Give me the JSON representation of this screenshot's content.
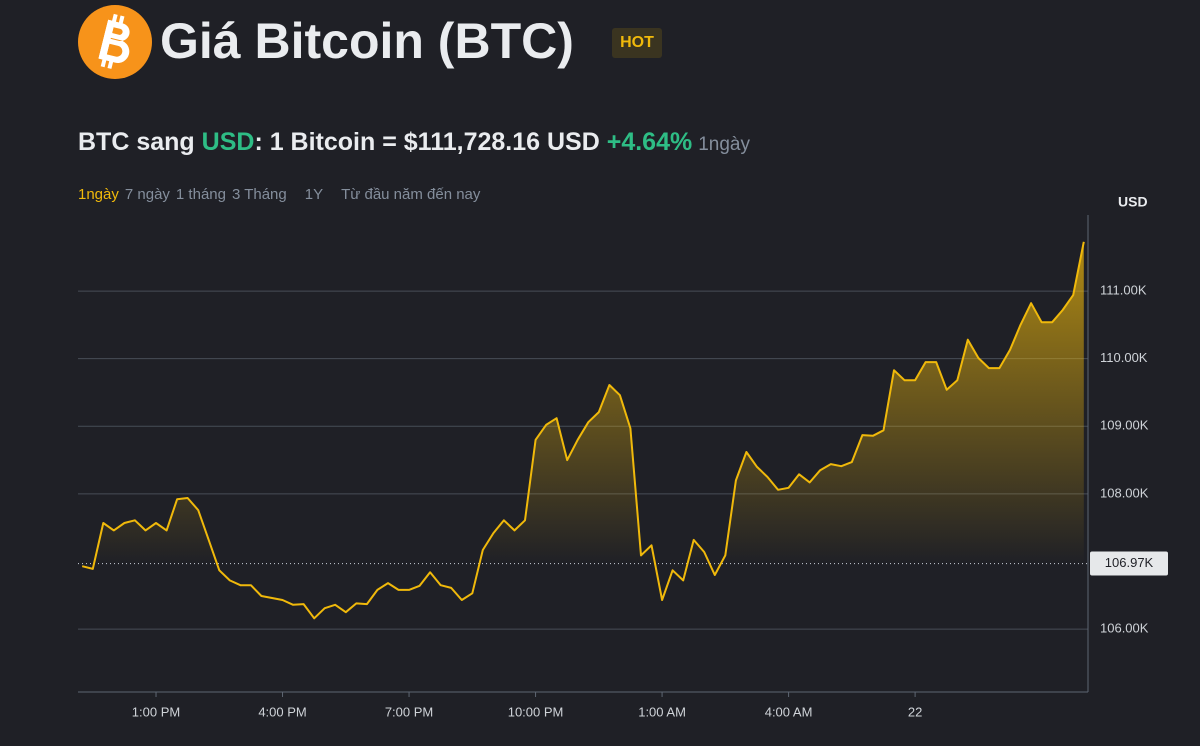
{
  "header": {
    "title": "Giá Bitcoin (BTC)",
    "badge": "HOT"
  },
  "price": {
    "pair_prefix": "BTC sang",
    "quote": "USD",
    "rate": ": 1 Bitcoin = $111,728.16 USD",
    "change": "+4.64%",
    "period": "1ngày"
  },
  "tabs": [
    "1ngày",
    "7 ngày",
    "1 tháng",
    "3 Tháng",
    "1Y",
    "Từ đầu năm đến nay"
  ],
  "chart_data": {
    "type": "line",
    "y_axis_label": "USD",
    "color": "#f0b90b",
    "x": [
      11.25,
      11.5,
      11.75,
      12,
      12.25,
      12.5,
      12.75,
      13,
      13.25,
      13.5,
      13.75,
      14,
      14.25,
      14.5,
      14.75,
      15,
      15.25,
      15.5,
      15.75,
      16,
      16.25,
      16.5,
      16.75,
      17,
      17.25,
      17.5,
      17.75,
      18,
      18.25,
      18.5,
      18.75,
      19,
      19.25,
      19.5,
      19.75,
      20,
      20.25,
      20.5,
      20.75,
      21,
      21.25,
      21.5,
      21.75,
      22,
      22.25,
      22.5,
      22.75,
      23,
      23.25,
      23.5,
      23.75,
      24,
      24.25,
      24.5,
      24.75,
      25,
      25.25,
      25.5,
      25.75,
      26,
      26.25,
      26.5,
      26.75,
      27,
      27.25,
      27.5,
      27.75,
      28,
      28.25,
      28.5,
      28.75,
      29,
      29.25,
      29.5,
      29.75,
      30,
      30.25,
      30.5,
      30.75,
      31,
      31.25,
      31.5,
      31.75,
      32,
      32.25,
      32.5,
      32.75,
      33,
      33.25,
      33.5,
      33.75,
      34,
      34.25,
      34.5,
      34.75,
      35
    ],
    "values": [
      106930,
      106890,
      107570,
      107460,
      107570,
      107610,
      107460,
      107570,
      107460,
      107920,
      107940,
      107760,
      107320,
      106870,
      106720,
      106650,
      106650,
      106490,
      106460,
      106430,
      106360,
      106370,
      106160,
      106310,
      106360,
      106250,
      106380,
      106370,
      106580,
      106680,
      106580,
      106580,
      106640,
      106840,
      106650,
      106610,
      106430,
      106530,
      107170,
      107420,
      107610,
      107460,
      107610,
      108800,
      109020,
      109120,
      108500,
      108800,
      109060,
      109210,
      109610,
      109460,
      108970,
      107090,
      107240,
      106430,
      106870,
      106720,
      107320,
      107140,
      106800,
      107090,
      108200,
      108620,
      108400,
      108250,
      108060,
      108090,
      108290,
      108170,
      108350,
      108440,
      108410,
      108470,
      108870,
      108860,
      108940,
      109830,
      109680,
      109680,
      109950,
      109950,
      109540,
      109680,
      110280,
      110010,
      109860,
      109860,
      110130,
      110500,
      110820,
      110540,
      110540,
      110720,
      110940,
      111728.16
    ],
    "xlim": [
      11.15,
      35.1
    ],
    "ylim": [
      105070,
      112125
    ],
    "xticks": [
      {
        "value": 13,
        "label": "1:00 PM"
      },
      {
        "value": 16,
        "label": "4:00 PM"
      },
      {
        "value": 19,
        "label": "7:00 PM"
      },
      {
        "value": 22,
        "label": "10:00 PM"
      },
      {
        "value": 25,
        "label": "1:00 AM"
      },
      {
        "value": 28,
        "label": "4:00 AM"
      },
      {
        "value": 31,
        "label": "22"
      }
    ],
    "yticks": [
      {
        "value": 106000,
        "label": "106.00K"
      },
      {
        "value": 108000,
        "label": "108.00K"
      },
      {
        "value": 109000,
        "label": "109.00K"
      },
      {
        "value": 110000,
        "label": "110.00K"
      },
      {
        "value": 111000,
        "label": "111.00K"
      }
    ],
    "reference": {
      "value": 106970,
      "label": "106.97K"
    },
    "grid": true
  }
}
